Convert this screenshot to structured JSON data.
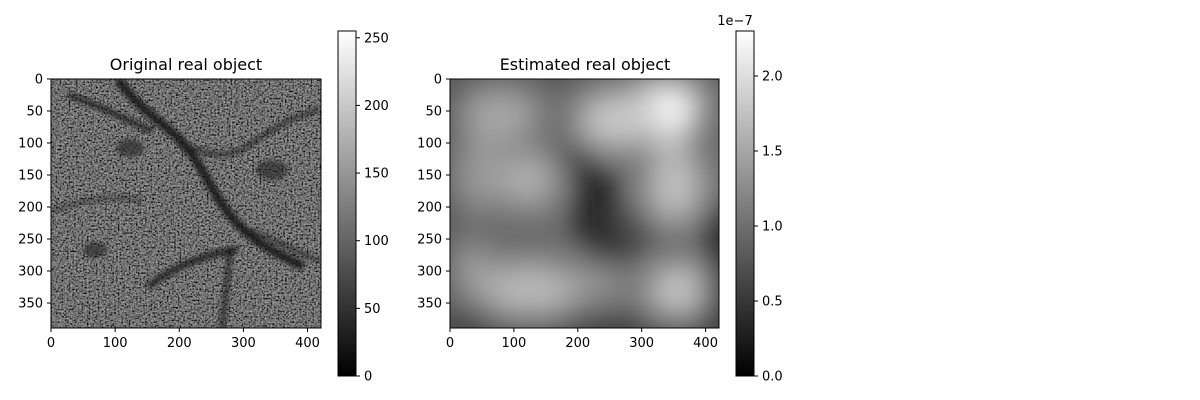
{
  "chart_data": [
    {
      "type": "heatmap",
      "title": "Original real object",
      "colormap": "gray",
      "x_ticks": [
        0,
        100,
        200,
        300,
        400
      ],
      "y_ticks": [
        0,
        50,
        100,
        150,
        200,
        250,
        300,
        350
      ],
      "xlim": [
        0,
        421
      ],
      "ylim": [
        389,
        0
      ],
      "grid": false,
      "colorbar": {
        "range": [
          0,
          255
        ],
        "ticks": [
          0,
          50,
          100,
          150,
          200,
          250
        ],
        "tick_labels": [
          "0",
          "50",
          "100",
          "150",
          "200",
          "250"
        ],
        "offset_label": ""
      },
      "image_description_values": {
        "style": "dark noisy speckled texture with darker vessel-like branches",
        "mean_level": 70
      }
    },
    {
      "type": "heatmap",
      "title": "Estimated real object",
      "colormap": "gray",
      "x_ticks": [
        0,
        100,
        200,
        300,
        400
      ],
      "y_ticks": [
        0,
        50,
        100,
        150,
        200,
        250,
        300,
        350
      ],
      "xlim": [
        0,
        421
      ],
      "ylim": [
        389,
        0
      ],
      "grid": false,
      "colorbar": {
        "range": [
          0,
          2.3e-07
        ],
        "ticks": [
          0.0,
          0.5,
          1.0,
          1.5,
          2.0
        ],
        "tick_labels": [
          "0.0",
          "0.5",
          "1.0",
          "1.5",
          "2.0"
        ],
        "offset_label": "1e−7"
      },
      "image_description_values": {
        "style": "smooth blurred blobs, bright spot near top right, dark center and edges",
        "mean_level": 1e-07
      }
    }
  ]
}
